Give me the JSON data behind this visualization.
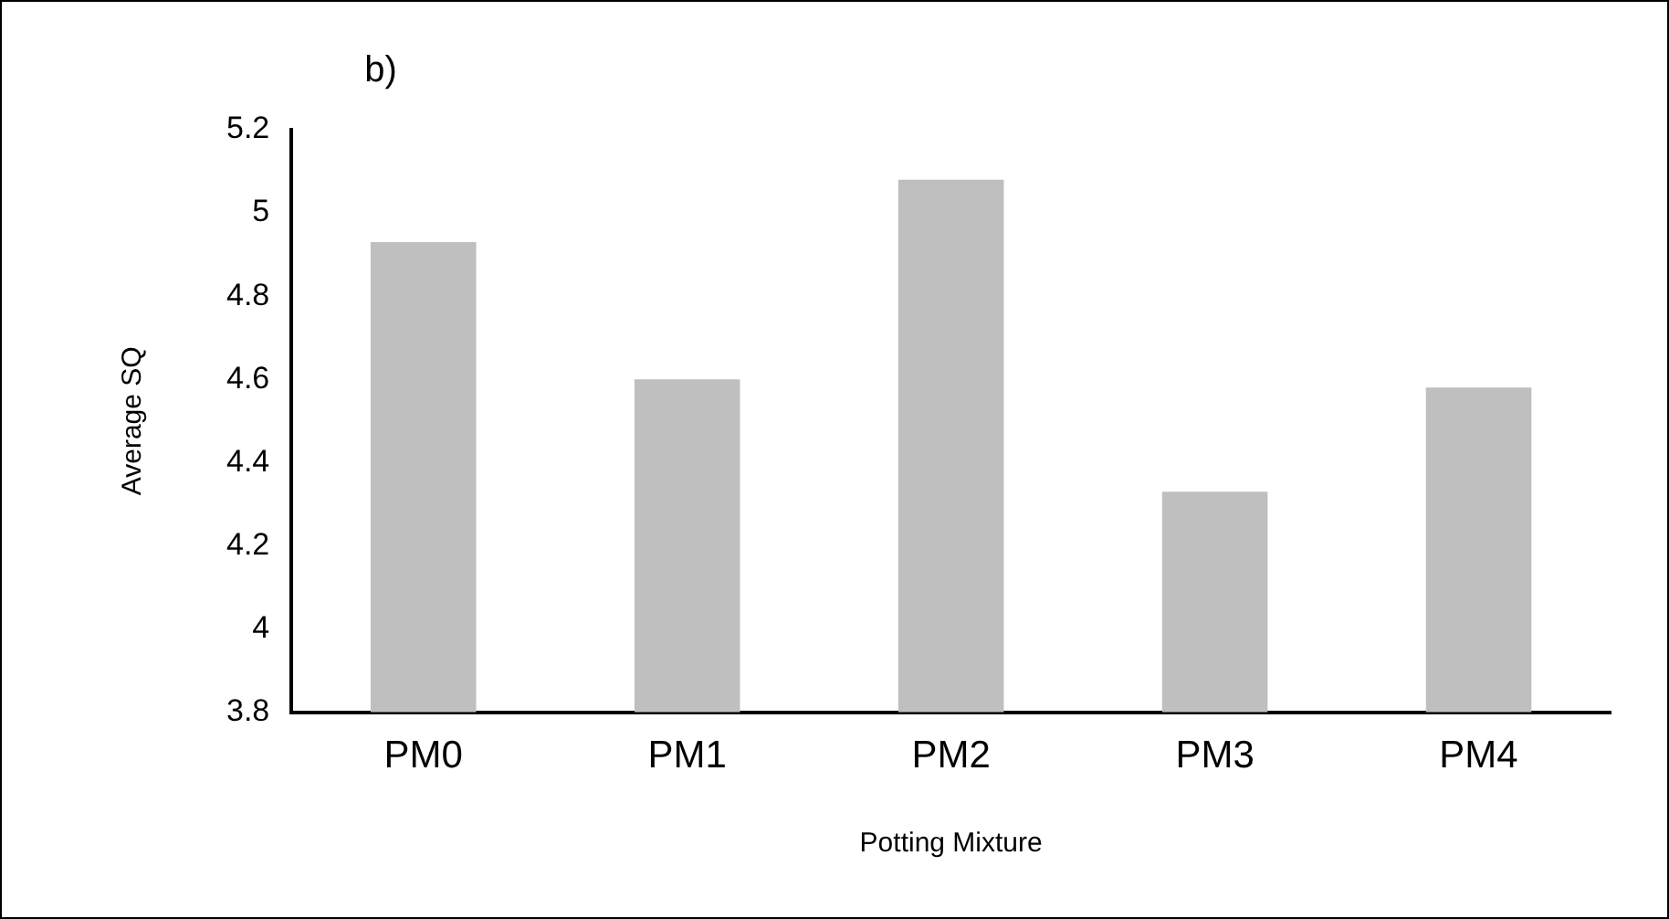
{
  "chart_data": {
    "type": "bar",
    "xlabel": "Potting Mixture",
    "ylabel": "Average SQ",
    "annotations": [
      "b)"
    ],
    "categories": [
      "PM0",
      "PM1",
      "PM2",
      "PM3",
      "PM4"
    ],
    "values": [
      4.93,
      4.6,
      5.08,
      4.33,
      4.58
    ],
    "color": "#bfbfbf",
    "ylim": [
      3.8,
      5.2
    ],
    "yticks": [
      3.8,
      4,
      4.2,
      4.4,
      4.6,
      4.8,
      5,
      5.2
    ],
    "grid": false,
    "legend": false
  }
}
